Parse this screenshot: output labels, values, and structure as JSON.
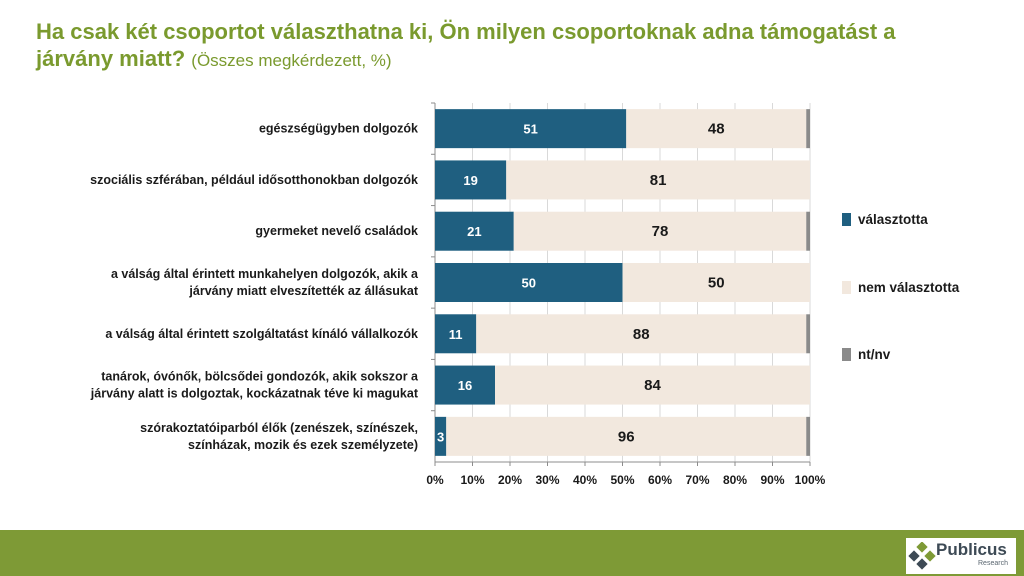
{
  "title": {
    "main": "Ha csak két csoportot választhatna ki, Ön milyen csoportoknak adna támogatást a járvány miatt?",
    "subtitle": "(Összes megkérdezett, %)"
  },
  "chart_data": {
    "type": "bar",
    "orientation": "horizontal",
    "stacked": true,
    "categories": [
      [
        "egészségügyben dolgozók"
      ],
      [
        "szociális szférában, például idősotthonokban dolgozók"
      ],
      [
        "gyermeket nevelő családok"
      ],
      [
        "a válság által érintett munkahelyen dolgozók, akik a",
        "járvány miatt elveszítették az állásukat"
      ],
      [
        "a válság által érintett szolgáltatást kínáló vállalkozók"
      ],
      [
        "tanárok, óvónők, bölcsődei gondozók, akik sokszor a",
        "járvány alatt is dolgoztak, kockázatnak téve ki magukat"
      ],
      [
        "szórakoztatóiparból élők (zenészek, színészek,",
        "színházak, mozik és ezek személyzete)"
      ]
    ],
    "series": [
      {
        "name": "választotta",
        "color": "#1f5f80",
        "values": [
          51,
          19,
          21,
          50,
          11,
          16,
          3
        ]
      },
      {
        "name": "nem választotta",
        "color": "#f2e8de",
        "values": [
          48,
          81,
          78,
          50,
          88,
          84,
          96
        ]
      },
      {
        "name": "nt/nv",
        "color": "#8a8a8a",
        "values": [
          1,
          0.5,
          1,
          0.5,
          1,
          0.5,
          1
        ]
      }
    ],
    "data_labels": [
      [
        "51",
        "48"
      ],
      [
        "19",
        "81"
      ],
      [
        "21",
        "78"
      ],
      [
        "50",
        "50"
      ],
      [
        "11",
        "88"
      ],
      [
        "16",
        "84"
      ],
      [
        "3",
        "96"
      ]
    ],
    "x_ticks": [
      "0%",
      "10%",
      "20%",
      "30%",
      "40%",
      "50%",
      "60%",
      "70%",
      "80%",
      "90%",
      "100%"
    ],
    "xlim": [
      0,
      100
    ],
    "grid": true,
    "legend_position": "right"
  },
  "brand": {
    "name": "Publicus",
    "tagline": "Research",
    "footer_color": "#7e9a36"
  }
}
